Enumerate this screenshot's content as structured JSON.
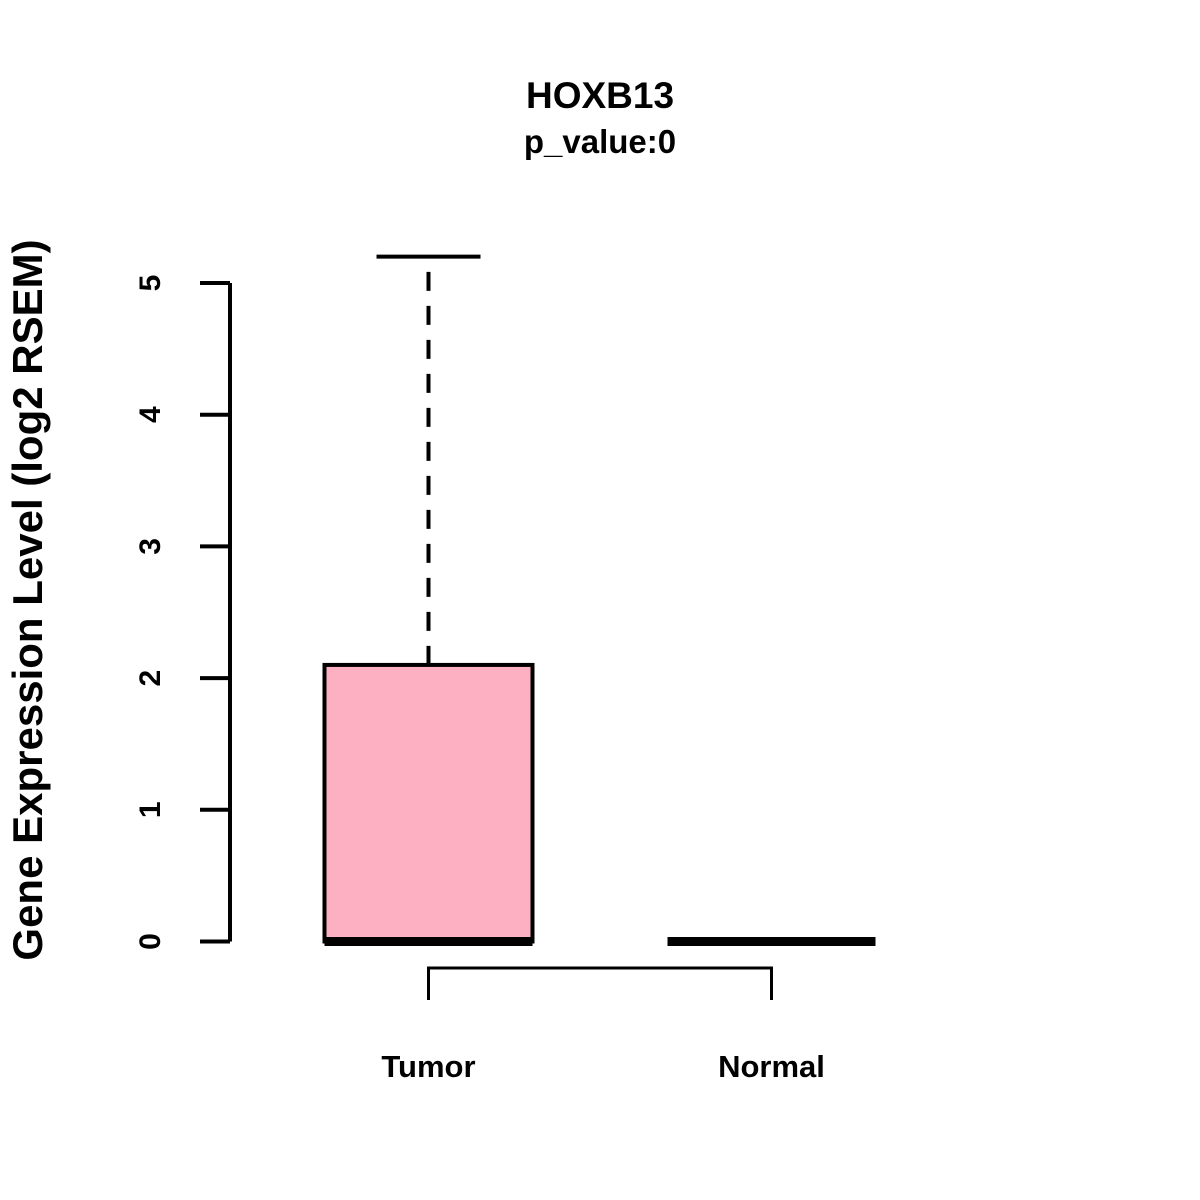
{
  "page": {
    "background": "#ffffff"
  },
  "chart_data": {
    "type": "boxplot",
    "title": "HOXB13",
    "subtitle": "p_value:0",
    "ylabel": "Gene Expression Level (log2 RSEM)",
    "xlabel": "",
    "axis_range": [
      0,
      5
    ],
    "yticks": [
      0,
      1,
      2,
      3,
      4,
      5
    ],
    "categories": [
      "Tumor",
      "Normal"
    ],
    "series": [
      {
        "name": "Tumor",
        "lower_whisker": 0,
        "q1": 0,
        "median": 0,
        "q3": 2.1,
        "upper_whisker": 5.2
      },
      {
        "name": "Normal",
        "lower_whisker": 0,
        "q1": 0,
        "median": 0,
        "q3": 0,
        "upper_whisker": 0
      }
    ],
    "comparison_bracket": {
      "between": [
        "Tumor",
        "Normal"
      ]
    },
    "colors": {
      "box_fill": "#fcb0c1",
      "line": "#000000",
      "background": "#ffffff"
    },
    "grid": false,
    "legend": "none"
  }
}
